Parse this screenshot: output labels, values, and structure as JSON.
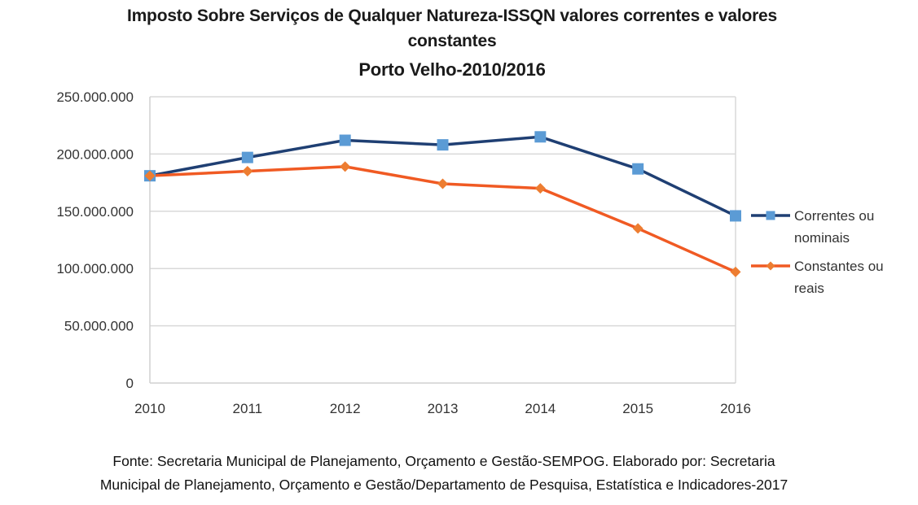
{
  "chart_data": {
    "type": "line",
    "title_lines": [
      "Imposto Sobre Serviços de Qualquer Natureza-ISSQN valores correntes e valores",
      "constantes",
      "Porto Velho-2010/2016"
    ],
    "xlabel": "",
    "ylabel": "",
    "x": [
      "2010",
      "2011",
      "2012",
      "2013",
      "2014",
      "2015",
      "2016"
    ],
    "ylim": [
      0,
      250000000
    ],
    "yticks": [
      0,
      50000000,
      100000000,
      150000000,
      200000000,
      250000000
    ],
    "ytick_labels": [
      "0",
      "50.000.000",
      "100.000.000",
      "150.000.000",
      "200.000.000",
      "250.000.000"
    ],
    "grid": true,
    "legend_position": "right",
    "series": [
      {
        "name": "Correntes ou nominais",
        "legend_lines": [
          "Correntes ou",
          "nominais"
        ],
        "marker": "square",
        "line_color": "#1f3f73",
        "marker_color": "#5b9bd5",
        "values": [
          181000000,
          197000000,
          212000000,
          208000000,
          215000000,
          187000000,
          146000000
        ]
      },
      {
        "name": "Constantes ou reais",
        "legend_lines": [
          "Constantes ou",
          "reais"
        ],
        "marker": "diamond",
        "line_color": "#f05a23",
        "marker_color": "#ed7d31",
        "values": [
          181000000,
          185000000,
          189000000,
          174000000,
          170000000,
          135000000,
          97000000
        ]
      }
    ]
  },
  "caption": {
    "line1": "Fonte: Secretaria Municipal de Planejamento, Orçamento e Gestão-SEMPOG. Elaborado por: Secretaria",
    "line2": "Municipal de Planejamento, Orçamento e Gestão/Departamento de Pesquisa, Estatística e Indicadores-2017"
  }
}
